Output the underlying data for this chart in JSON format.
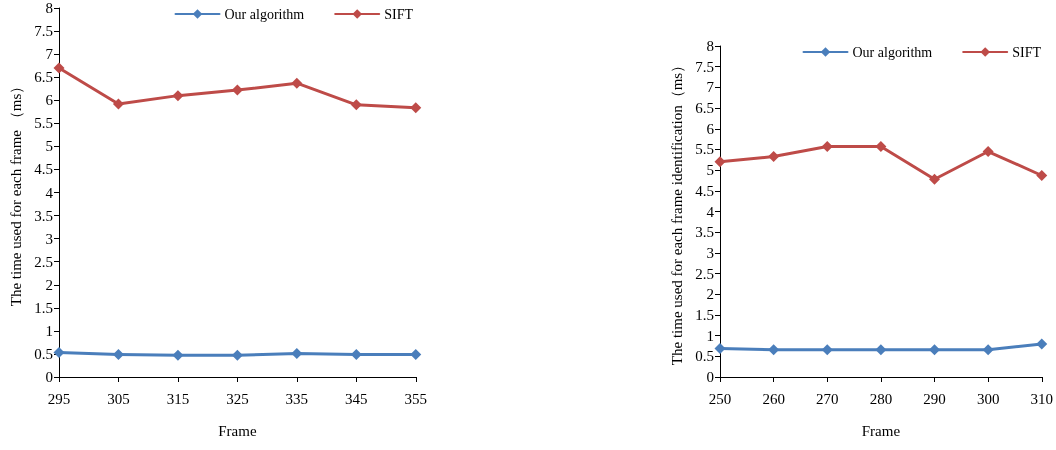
{
  "chart_data": [
    {
      "type": "line",
      "xlabel": "Frame",
      "ylabel": "The time used for each frame （ms）",
      "x": [
        295,
        305,
        315,
        325,
        335,
        345,
        355
      ],
      "xlim": [
        295,
        355
      ],
      "xticks": [
        295,
        305,
        315,
        325,
        335,
        345,
        355
      ],
      "ylim": [
        0,
        8
      ],
      "yticks": [
        0,
        0.5,
        1,
        1.5,
        2,
        2.5,
        3,
        3.5,
        4,
        4.5,
        5,
        5.5,
        6,
        6.5,
        7,
        7.5,
        8
      ],
      "grid": false,
      "legend": "top right",
      "marker": "diamond",
      "line_style": "solid",
      "series": [
        {
          "name": "Our algorithm",
          "color": "#4a7ebb",
          "values": [
            0.53,
            0.49,
            0.47,
            0.47,
            0.51,
            0.49,
            0.49
          ]
        },
        {
          "name": "SIFT",
          "color": "#be4b48",
          "values": [
            6.7,
            5.92,
            6.1,
            6.22,
            6.37,
            5.9,
            5.84
          ]
        }
      ]
    },
    {
      "type": "line",
      "xlabel": "Frame",
      "ylabel": "The time used for each frame identification（ms）",
      "x": [
        250,
        260,
        270,
        280,
        290,
        300,
        310
      ],
      "xlim": [
        250,
        310
      ],
      "xticks": [
        250,
        260,
        270,
        280,
        290,
        300,
        310
      ],
      "ylim": [
        0,
        8
      ],
      "yticks": [
        0,
        0.5,
        1,
        1.5,
        2,
        2.5,
        3,
        3.5,
        4,
        4.5,
        5,
        5.5,
        6,
        6.5,
        7,
        7.5,
        8
      ],
      "grid": false,
      "legend": "top right",
      "marker": "diamond",
      "line_style": "solid",
      "series": [
        {
          "name": "Our algorithm",
          "color": "#4a7ebb",
          "values": [
            0.69,
            0.66,
            0.66,
            0.66,
            0.66,
            0.66,
            0.8
          ]
        },
        {
          "name": "SIFT",
          "color": "#be4b48",
          "values": [
            5.2,
            5.33,
            5.57,
            5.57,
            4.78,
            5.45,
            4.87
          ]
        }
      ]
    }
  ]
}
